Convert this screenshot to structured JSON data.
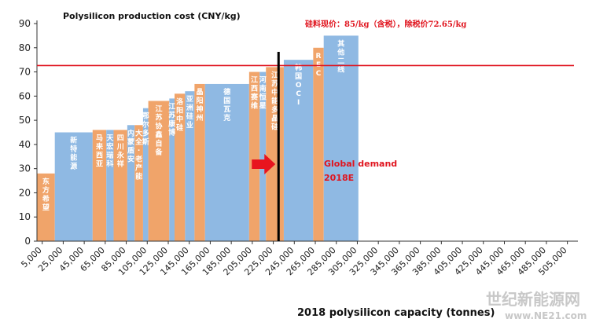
{
  "chart_data": {
    "type": "bar",
    "title": "Polysilicon production cost (CNY/kg)",
    "xlabel": "2018 polysilicon capacity (tonnes)",
    "ylabel": "",
    "ylim": [
      0,
      90
    ],
    "xlim": [
      0,
      515000
    ],
    "y_ticks": [
      0,
      10,
      20,
      30,
      40,
      50,
      60,
      70,
      80,
      90
    ],
    "x_tick_labels": [
      "5,000",
      "25,000",
      "45,000",
      "65,000",
      "85,000",
      "105,000",
      "125,000",
      "145,000",
      "165,000",
      "185,000",
      "205,000",
      "225,000",
      "245,000",
      "265,000",
      "285,000",
      "305,000",
      "325,000",
      "345,000",
      "365,000",
      "385,000",
      "405,000",
      "425,000",
      "445,000",
      "465,000",
      "485,000",
      "505,000"
    ],
    "x_tick_values": [
      5000,
      25000,
      45000,
      65000,
      85000,
      105000,
      125000,
      145000,
      165000,
      185000,
      205000,
      225000,
      245000,
      265000,
      285000,
      305000,
      325000,
      345000,
      365000,
      385000,
      405000,
      425000,
      445000,
      465000,
      485000,
      505000
    ],
    "bars": [
      {
        "label": "东方希望",
        "x0": 0,
        "x1": 17000,
        "value": 28,
        "color": "#f0a46a"
      },
      {
        "label": "新特能源",
        "x0": 17000,
        "x1": 53000,
        "value": 45,
        "color": "#8fb9e3"
      },
      {
        "label": "马来西亚",
        "x0": 53000,
        "x1": 66000,
        "value": 46,
        "color": "#f0a46a"
      },
      {
        "label": "天宏瑞科",
        "x0": 66000,
        "x1": 73000,
        "value": 46,
        "color": "#8fb9e3"
      },
      {
        "label": "四川永祥",
        "x0": 73000,
        "x1": 86000,
        "value": 46,
        "color": "#f0a46a"
      },
      {
        "label": "内蒙盾安",
        "x0": 86000,
        "x1": 93000,
        "value": 48,
        "color": "#8fb9e3"
      },
      {
        "label": "大全·老产能",
        "x0": 93000,
        "x1": 101000,
        "value": 48,
        "color": "#f0a46a"
      },
      {
        "label": "鄂尔多斯",
        "x0": 101000,
        "x1": 106000,
        "value": 55,
        "color": "#8fb9e3"
      },
      {
        "label": "江苏协鑫自备",
        "x0": 106000,
        "x1": 126000,
        "value": 58,
        "color": "#f0a46a"
      },
      {
        "label": "江苏康博",
        "x0": 126000,
        "x1": 131000,
        "value": 59,
        "color": "#8fb9e3"
      },
      {
        "label": "洛阳中硅",
        "x0": 131000,
        "x1": 141000,
        "value": 61,
        "color": "#f0a46a"
      },
      {
        "label": "亚洲硅业",
        "x0": 141000,
        "x1": 150000,
        "value": 62,
        "color": "#8fb9e3"
      },
      {
        "label": "晶阳神州",
        "x0": 150000,
        "x1": 160000,
        "value": 65,
        "color": "#f0a46a"
      },
      {
        "label": "德国瓦克",
        "x0": 160000,
        "x1": 202000,
        "value": 65,
        "color": "#8fb9e3"
      },
      {
        "label": "江西赛维",
        "x0": 202000,
        "x1": 212000,
        "value": 70,
        "color": "#f0a46a"
      },
      {
        "label": "河南恒星",
        "x0": 212000,
        "x1": 218000,
        "value": 70,
        "color": "#8fb9e3"
      },
      {
        "label": "江苏中能多晶硅",
        "x0": 218000,
        "x1": 235000,
        "value": 72,
        "color": "#f0a46a"
      },
      {
        "label": "韩国OCI",
        "x0": 235000,
        "x1": 263000,
        "value": 75,
        "color": "#8fb9e3"
      },
      {
        "label": "REC",
        "x0": 263000,
        "x1": 273000,
        "value": 80,
        "color": "#f0a46a"
      },
      {
        "label": "其他二线",
        "x0": 273000,
        "x1": 306000,
        "value": 85,
        "color": "#8fb9e3"
      }
    ],
    "price_line": {
      "value": 72.65,
      "color": "#e0141e"
    },
    "price_note": "硅料现价：85/kg（含税），除税价72.65/kg",
    "demand_line_x": 230000,
    "demand_label_1": "Global demand",
    "demand_label_2": "2018E",
    "grid": false,
    "legend": "none"
  },
  "watermark": {
    "text": "世纪新能源网",
    "url": "www.NE21.com"
  }
}
